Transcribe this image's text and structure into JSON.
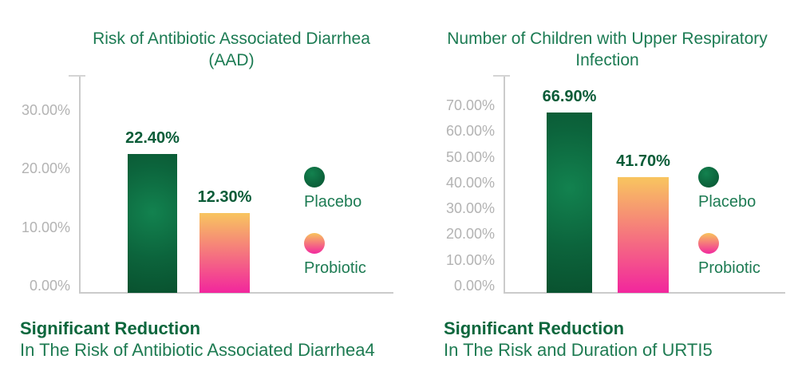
{
  "page": {
    "background": "#ffffff"
  },
  "colors": {
    "title_green": "#1c7b53",
    "value_label_green": "#0a5c38",
    "caption_bold_green": "#0c673d",
    "caption_green": "#1e7b52",
    "axis_gray": "#cbcbcb",
    "tick_gray": "#b3b3b3",
    "placebo_bar_green_light": "#12824f",
    "placebo_bar_green_dark": "#09522f",
    "probiotic_gradient_top": "#f8c55f",
    "probiotic_gradient_bottom": "#f2269d"
  },
  "legend": {
    "items": [
      {
        "label": "Placebo",
        "swatch": "placebo"
      },
      {
        "label": "Probiotic",
        "swatch": "probiotic"
      }
    ]
  },
  "chart_data": [
    {
      "type": "bar",
      "title": "Risk of Antibiotic Associated Diarrhea (AAD)",
      "title_lines": [
        "Risk of Antibiotic Associated Diarrhea",
        "(AAD)"
      ],
      "categories": [
        "Placebo",
        "Probiotic"
      ],
      "values": [
        22.4,
        12.3
      ],
      "value_labels": [
        "22.40%",
        "12.30%"
      ],
      "y_ticks": [
        "30.00%",
        "20.00%",
        "10.00%",
        "0.00%"
      ],
      "ylim": [
        0,
        30
      ],
      "grid": false,
      "legend_position": "right",
      "caption_title": "Significant Reduction",
      "caption_text": "In The Risk of Antibiotic Associated Diarrhea4"
    },
    {
      "type": "bar",
      "title": "Number of Children with Upper Respiratory Infection",
      "title_lines": [
        "Number of Children with Upper Respiratory",
        "Infection"
      ],
      "categories": [
        "Placebo",
        "Probiotic"
      ],
      "values": [
        66.9,
        41.7
      ],
      "value_labels": [
        "66.90%",
        "41.70%"
      ],
      "y_ticks": [
        "70.00%",
        "60.00%",
        "50.00%",
        "40.00%",
        "30.00%",
        "20.00%",
        "10.00%",
        "0.00%"
      ],
      "ylim": [
        0,
        70
      ],
      "grid": false,
      "legend_position": "right",
      "caption_title": "Significant Reduction",
      "caption_text": "In The Risk and Duration of URTI5"
    }
  ]
}
